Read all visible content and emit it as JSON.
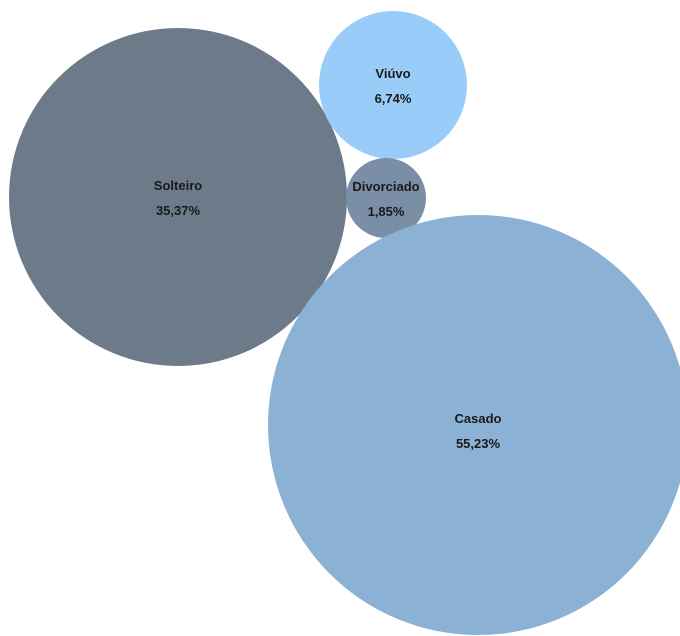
{
  "chart_data": {
    "type": "bubble",
    "title": "",
    "series": [
      {
        "name": "Solteiro",
        "value": 35.37,
        "label": "35,37%",
        "color": "#6d7a8a"
      },
      {
        "name": "Viúvo",
        "value": 6.74,
        "label": "6,74%",
        "color": "#99ccf8"
      },
      {
        "name": "Divorciado",
        "value": 1.85,
        "label": "1,85%",
        "color": "#7a8ea6"
      },
      {
        "name": "Casado",
        "value": 55.23,
        "label": "55,23%",
        "color": "#8bb1d4"
      }
    ]
  }
}
